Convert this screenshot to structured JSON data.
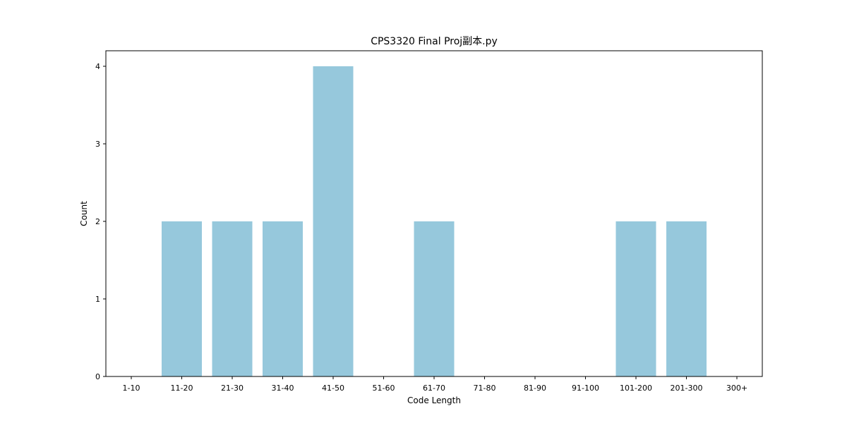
{
  "chart_data": {
    "type": "bar",
    "title": "CPS3320 Final Proj副本.py",
    "xlabel": "Code Length",
    "ylabel": "Count",
    "categories": [
      "1-10",
      "11-20",
      "21-30",
      "31-40",
      "41-50",
      "51-60",
      "61-70",
      "71-80",
      "81-90",
      "91-100",
      "101-200",
      "201-300",
      "300+"
    ],
    "values": [
      0,
      2,
      2,
      2,
      4,
      0,
      2,
      0,
      0,
      0,
      2,
      2,
      0
    ],
    "yticks": [
      0,
      1,
      2,
      3,
      4
    ],
    "ylim": [
      0,
      4.2
    ],
    "grid": false,
    "bar_color": "#96c8dc"
  }
}
